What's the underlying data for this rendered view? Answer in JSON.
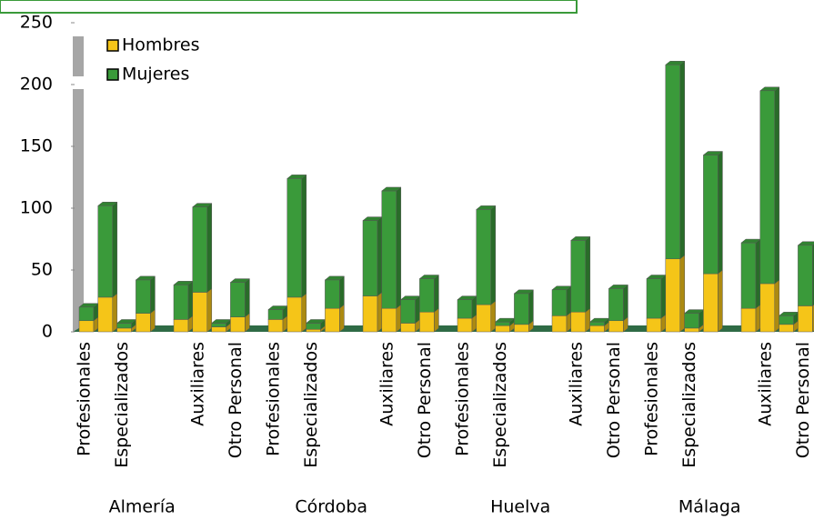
{
  "chart_data": {
    "type": "stacked-bar-3d",
    "groups": [
      "Almería",
      "Córdoba",
      "Huelva",
      "Málaga"
    ],
    "categories": [
      "Profesionales",
      null,
      "Especializados",
      null,
      null,
      "Auxiliares",
      null,
      "Otro Personal",
      "Profesionales",
      null,
      "Especializados",
      null,
      null,
      "Auxiliares",
      null,
      "Otro Personal",
      "Profesionales",
      null,
      "Especializados",
      null,
      null,
      "Auxiliares",
      null,
      "Otro Personal",
      "Profesionales",
      null,
      "Especializados",
      null,
      null,
      "Auxiliares",
      null,
      "Otro Personal"
    ],
    "series": [
      {
        "name": "Hombres",
        "color": "#f5c518",
        "values": [
          9,
          28,
          3,
          15,
          10,
          32,
          4,
          12,
          10,
          28,
          2,
          19,
          29,
          19,
          7,
          16,
          11,
          22,
          5,
          6,
          13,
          16,
          5,
          9,
          11,
          59,
          3,
          47,
          19,
          39,
          6,
          21
        ]
      },
      {
        "name": "Mujeres",
        "color": "#3a9a3a",
        "values": [
          11,
          74,
          4,
          27,
          28,
          69,
          3,
          28,
          8,
          96,
          5,
          23,
          61,
          95,
          19,
          27,
          15,
          77,
          3,
          25,
          21,
          58,
          3,
          26,
          32,
          157,
          12,
          96,
          53,
          156,
          7,
          49
        ]
      }
    ],
    "ylim": [
      0,
      250
    ],
    "yticks": [
      0,
      50,
      100,
      150,
      200,
      250
    ],
    "legend": "upper-left"
  }
}
